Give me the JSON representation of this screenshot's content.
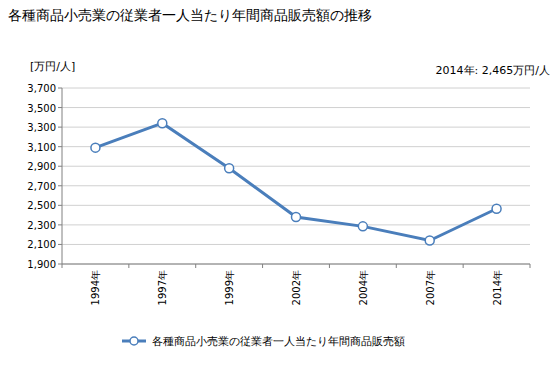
{
  "chart_data": {
    "type": "line",
    "title": "各種商品小売業の従業者一人当たり年間商品販売額の推移",
    "y_label": "[万円/人]",
    "annotation": "2014年: 2,465万円/人",
    "categories": [
      "1994年",
      "1997年",
      "1999年",
      "2002年",
      "2004年",
      "2007年",
      "2014年"
    ],
    "series": [
      {
        "name": "各種商品小売業の従業者一人当たり年間商品販売額",
        "color": "#4a7ebb",
        "marker": "circle",
        "values": [
          3090,
          3340,
          2880,
          2380,
          2285,
          2140,
          2465
        ]
      }
    ],
    "ylim": [
      1900,
      3700
    ],
    "yticks": [
      {
        "value": 1900,
        "label": "1,900"
      },
      {
        "value": 2100,
        "label": "2,100"
      },
      {
        "value": 2300,
        "label": "2,300"
      },
      {
        "value": 2500,
        "label": "2,500"
      },
      {
        "value": 2700,
        "label": "2,700"
      },
      {
        "value": 2900,
        "label": "2,900"
      },
      {
        "value": 3100,
        "label": "3,100"
      },
      {
        "value": 3300,
        "label": "3,300"
      },
      {
        "value": 3500,
        "label": "3,500"
      },
      {
        "value": 3700,
        "label": "3,700"
      }
    ],
    "grid": true,
    "legend": "bottom"
  }
}
